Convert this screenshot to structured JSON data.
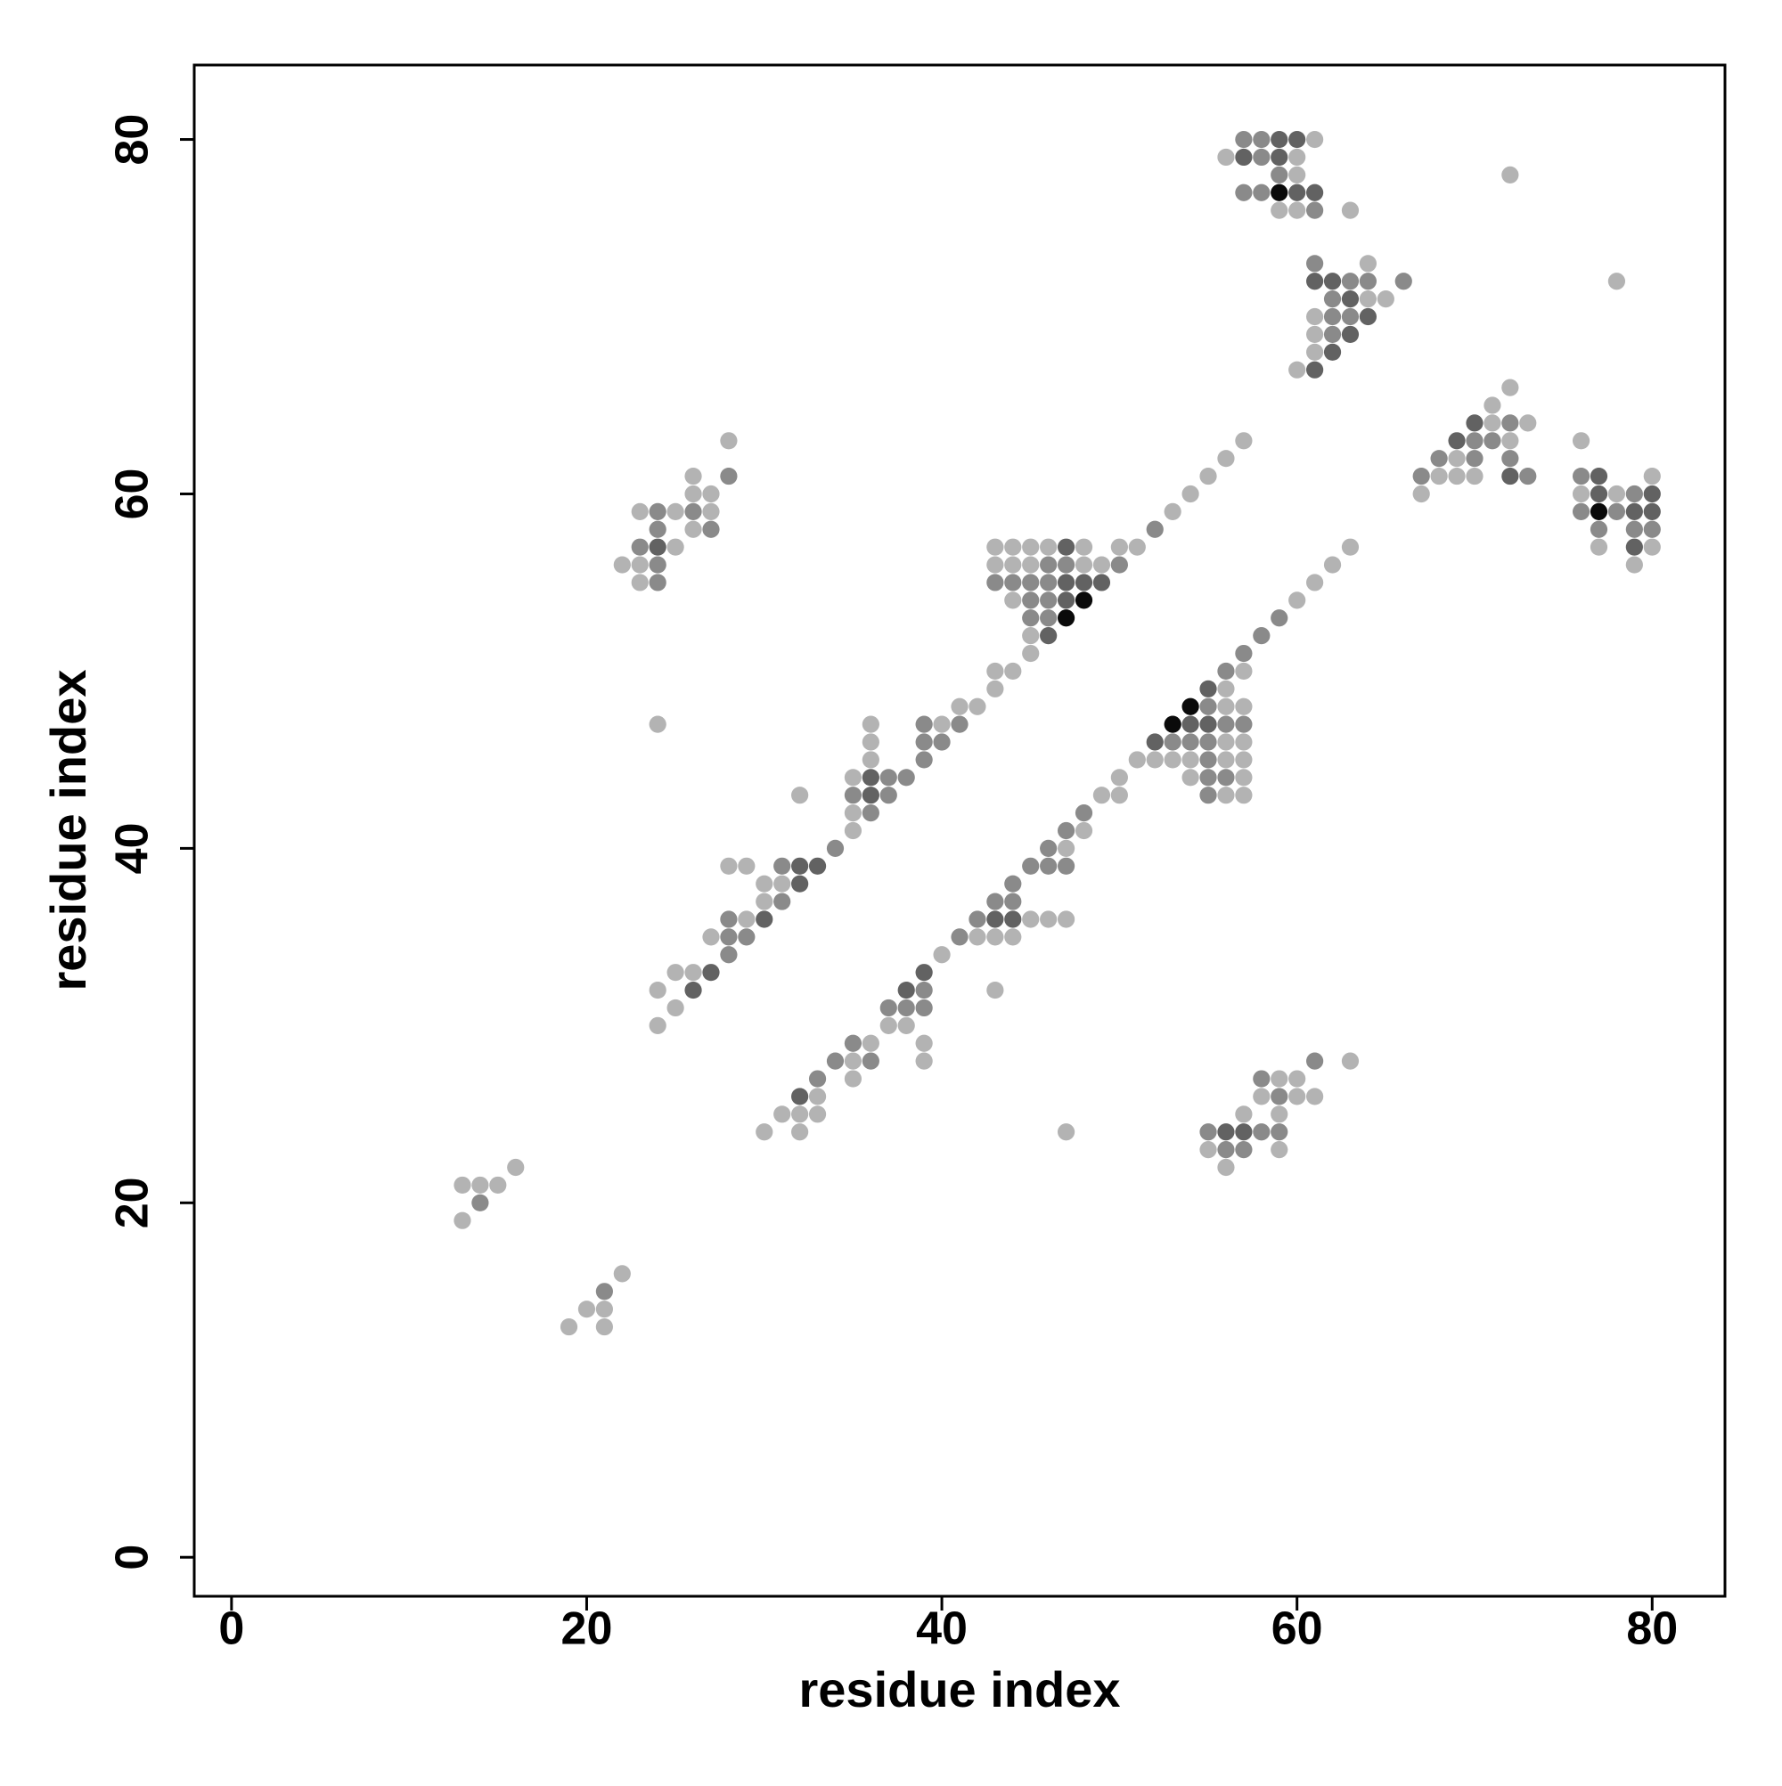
{
  "chart_data": {
    "type": "scatter",
    "x_label": "residue index",
    "y_label": "residue index",
    "xlim": [
      -2.1,
      84.1
    ],
    "ylim": [
      -2.2,
      84.2
    ],
    "xticks": [
      0,
      20,
      40,
      60,
      80
    ],
    "yticks": [
      0,
      20,
      40,
      60,
      80
    ],
    "series": [
      {
        "color": "#b3b3b3",
        "x": [
          13,
          13,
          14,
          15,
          16,
          21,
          21,
          22,
          20,
          19,
          28,
          26,
          26,
          27,
          23,
          25,
          27,
          26,
          25,
          22,
          23,
          23,
          24,
          24,
          24,
          25,
          25,
          26,
          27,
          29,
          30,
          30,
          31,
          28,
          29,
          35,
          35,
          32,
          35,
          36,
          36,
          36,
          40,
          41,
          42,
          43,
          43,
          44,
          45,
          45,
          44,
          43,
          44,
          45,
          48,
          49,
          43,
          44,
          45,
          46,
          48,
          50,
          51,
          53,
          54,
          55,
          56,
          57,
          61,
          56,
          60,
          60,
          59,
          60,
          63,
          64,
          64,
          65,
          61,
          61,
          61,
          60,
          72,
          78,
          72,
          71,
          71,
          73,
          72,
          69,
          68,
          69,
          70,
          67,
          76,
          80,
          76,
          78,
          77,
          80,
          79,
          30,
          32,
          31,
          32,
          33,
          33,
          35,
          35,
          39,
          36,
          39,
          37,
          38,
          43,
          40,
          42,
          43,
          44,
          45,
          46,
          47,
          47,
          48,
          49,
          50,
          50,
          54,
          57,
          56,
          57,
          51,
          52,
          53,
          54,
          56,
          57,
          56,
          57,
          56,
          57,
          56,
          57,
          60,
          61,
          62,
          63,
          47,
          63,
          59,
          60,
          58,
          60,
          61,
          57,
          59,
          55,
          59,
          56
        ],
        "values": [
          19,
          21,
          21,
          21,
          22,
          13,
          14,
          16,
          14,
          13,
          63,
          61,
          60,
          60,
          59,
          59,
          59,
          58,
          57,
          56,
          56,
          55,
          47,
          30,
          32,
          31,
          33,
          33,
          35,
          36,
          37,
          38,
          38,
          39,
          39,
          41,
          42,
          43,
          44,
          45,
          46,
          47,
          47,
          48,
          48,
          49,
          50,
          50,
          51,
          52,
          54,
          56,
          56,
          56,
          56,
          56,
          57,
          57,
          57,
          57,
          57,
          57,
          57,
          59,
          60,
          61,
          62,
          63,
          80,
          79,
          79,
          78,
          76,
          76,
          76,
          73,
          71,
          71,
          70,
          69,
          68,
          67,
          78,
          72,
          66,
          65,
          64,
          64,
          63,
          62,
          61,
          61,
          61,
          60,
          63,
          61,
          60,
          60,
          57,
          57,
          56,
          24,
          24,
          25,
          25,
          25,
          26,
          27,
          28,
          28,
          29,
          29,
          30,
          30,
          32,
          34,
          35,
          35,
          35,
          36,
          36,
          36,
          40,
          41,
          43,
          43,
          44,
          44,
          44,
          43,
          43,
          45,
          45,
          45,
          45,
          45,
          45,
          46,
          46,
          48,
          48,
          49,
          50,
          54,
          55,
          56,
          57,
          24,
          28,
          27,
          27,
          26,
          26,
          26,
          25,
          25,
          23,
          23,
          22
        ]
      },
      {
        "color": "#8a8a8a",
        "x": [
          14,
          21,
          28,
          24,
          26,
          24,
          27,
          23,
          24,
          24,
          28,
          28,
          29,
          28,
          31,
          31,
          34,
          36,
          35,
          37,
          37,
          38,
          39,
          39,
          40,
          39,
          41,
          45,
          46,
          45,
          46,
          43,
          44,
          45,
          46,
          46,
          47,
          50,
          52,
          57,
          58,
          58,
          59,
          57,
          58,
          61,
          61,
          63,
          64,
          66,
          62,
          62,
          63,
          62,
          72,
          70,
          71,
          68,
          70,
          72,
          67,
          73,
          76,
          79,
          76,
          78,
          77,
          79,
          80,
          33,
          34,
          36,
          35,
          37,
          38,
          39,
          39,
          41,
          42,
          43,
          44,
          44,
          45,
          46,
          47,
          46,
          47,
          48,
          55,
          56,
          55,
          55,
          53,
          54,
          55,
          56,
          57,
          55,
          56,
          57,
          58,
          59,
          61,
          58,
          59,
          58,
          59,
          55,
          56,
          57
        ],
        "values": [
          20,
          15,
          61,
          59,
          59,
          58,
          58,
          57,
          56,
          55,
          34,
          35,
          35,
          36,
          37,
          39,
          40,
          42,
          43,
          43,
          44,
          44,
          45,
          46,
          46,
          47,
          47,
          53,
          53,
          54,
          54,
          55,
          55,
          55,
          55,
          56,
          56,
          56,
          58,
          80,
          80,
          79,
          78,
          77,
          77,
          76,
          73,
          72,
          72,
          72,
          71,
          70,
          70,
          69,
          64,
          63,
          63,
          62,
          62,
          62,
          61,
          61,
          61,
          60,
          59,
          59,
          58,
          58,
          58,
          27,
          28,
          28,
          29,
          31,
          31,
          31,
          32,
          35,
          36,
          37,
          37,
          38,
          39,
          39,
          39,
          40,
          41,
          42,
          44,
          44,
          43,
          45,
          46,
          46,
          46,
          47,
          47,
          48,
          50,
          51,
          52,
          53,
          28,
          27,
          26,
          24,
          24,
          24,
          23,
          23
        ]
      },
      {
        "color": "#626262",
        "x": [
          24,
          26,
          27,
          30,
          32,
          32,
          33,
          36,
          36,
          46,
          47,
          47,
          48,
          49,
          47,
          59,
          60,
          57,
          59,
          60,
          61,
          61,
          62,
          63,
          64,
          63,
          62,
          61,
          70,
          69,
          72,
          77,
          77,
          80,
          79,
          80,
          79,
          32,
          38,
          39,
          43,
          44,
          52,
          54,
          55,
          55,
          56,
          57
        ],
        "values": [
          57,
          32,
          33,
          36,
          38,
          39,
          39,
          43,
          44,
          52,
          54,
          55,
          55,
          55,
          57,
          80,
          80,
          79,
          79,
          77,
          77,
          72,
          72,
          71,
          70,
          69,
          68,
          67,
          64,
          63,
          61,
          61,
          60,
          60,
          59,
          59,
          57,
          26,
          32,
          33,
          36,
          36,
          46,
          47,
          47,
          49,
          24,
          24
        ]
      },
      {
        "color": "#0a0a0a",
        "x": [
          47,
          48,
          59,
          77,
          53,
          54
        ],
        "values": [
          53,
          54,
          77,
          59,
          47,
          48
        ]
      }
    ]
  }
}
